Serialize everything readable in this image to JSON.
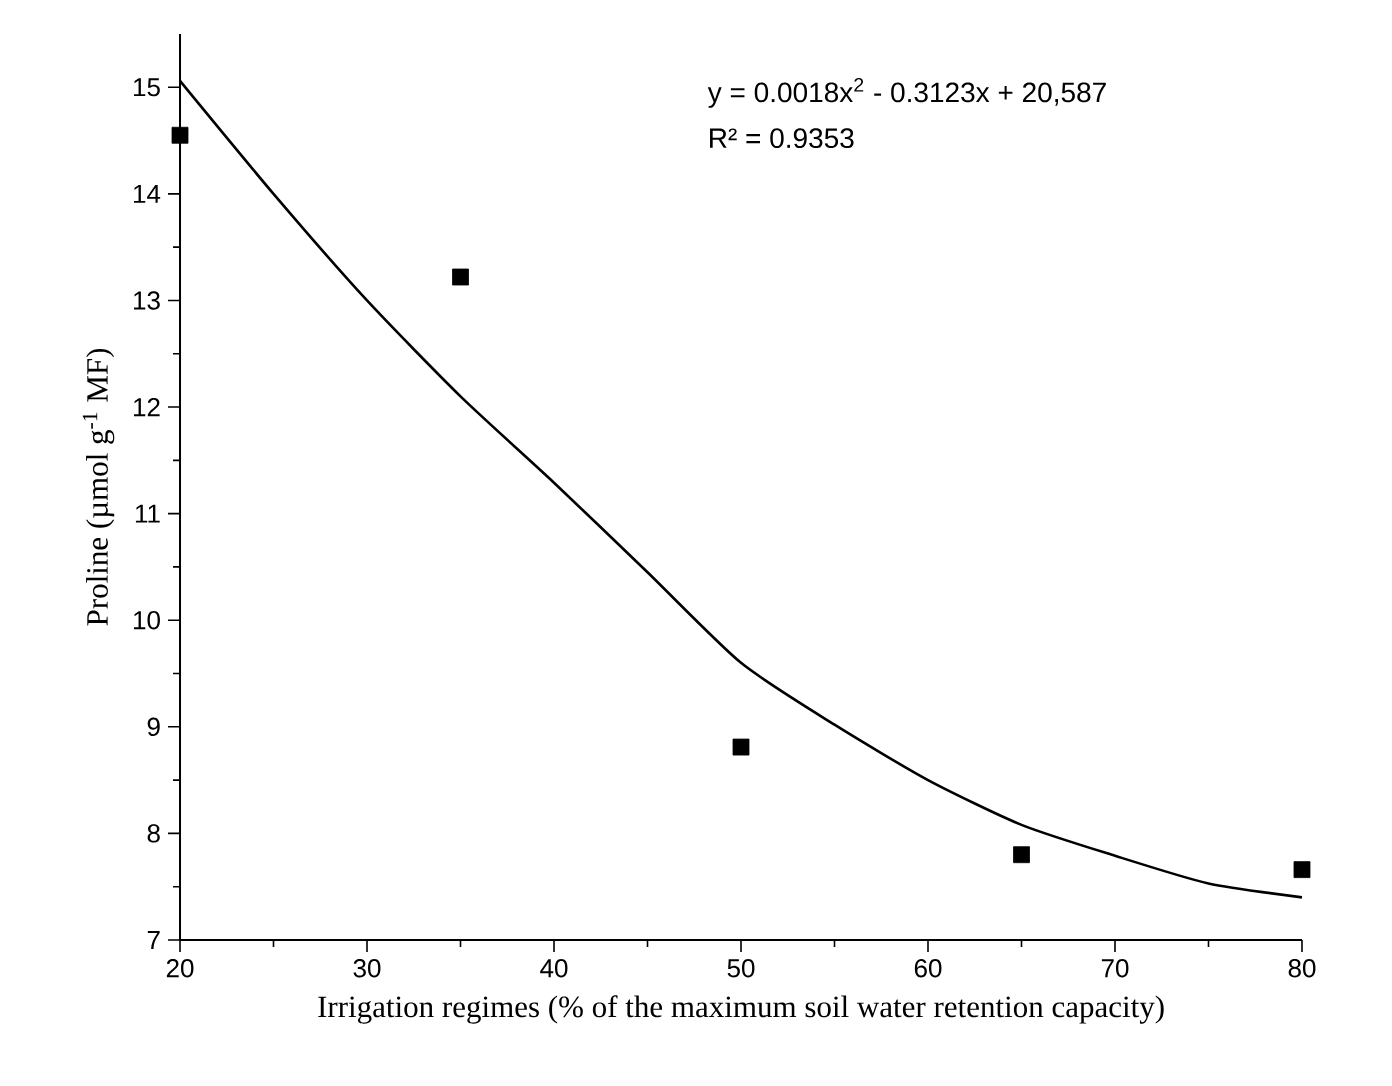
{
  "chart_data": {
    "type": "scatter",
    "xlabel": "Irrigation regimes (% of the maximum soil water retention capacity)",
    "ylabel": "Proline (µmol g$^{-1}$ MF)",
    "annotations": [
      "y = 0.0018x$^{2}$ - 0.3123x + 20,587",
      "R² = 0.9353"
    ],
    "xlim": [
      20,
      80
    ],
    "xticks": [
      20,
      30,
      40,
      50,
      60,
      70,
      80
    ],
    "ylim": [
      7,
      15.5
    ],
    "yticks": [
      7,
      8,
      9,
      10,
      11,
      12,
      13,
      14,
      15
    ],
    "series": [
      {
        "type": "scatter",
        "color": "#000000",
        "marker": "square",
        "x": [
          20,
          35,
          50,
          65,
          80
        ],
        "values": [
          14.55,
          13.22,
          8.81,
          7.8,
          7.66
        ]
      },
      {
        "type": "line",
        "color": "#000000",
        "marker": "none",
        "line_style": "solid",
        "x": [
          20,
          25,
          30,
          35,
          40,
          45,
          50,
          55,
          60,
          65,
          70,
          75,
          80
        ],
        "values": [
          15.06,
          14.0,
          13.0,
          12.1,
          11.29,
          10.45,
          9.6,
          9.02,
          8.5,
          8.08,
          7.79,
          7.53,
          7.4
        ]
      }
    ]
  }
}
